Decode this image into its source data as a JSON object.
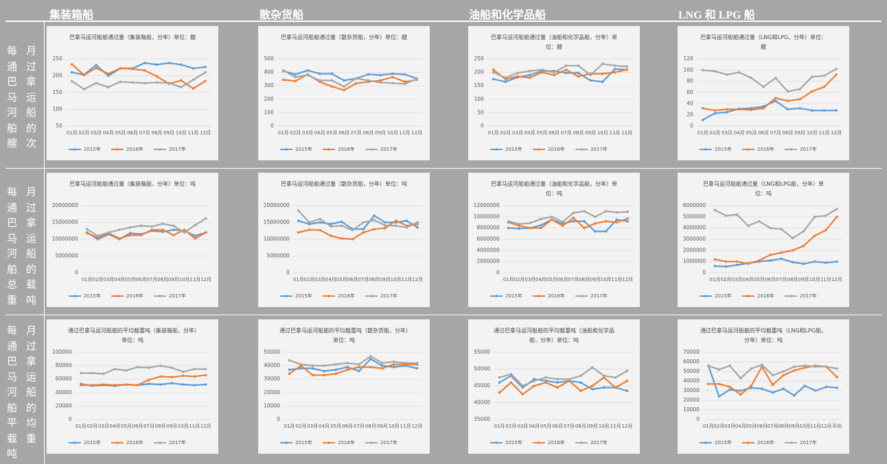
{
  "column_headers": [
    "集装箱船",
    "散杂货船",
    "油船和化学品船",
    "LNG 和 LPG 船"
  ],
  "row_labels": [
    "每月通过巴拿马运河船舶的艘次",
    "每月通过巴拿马运河船舶的总载重吨",
    "每月通过巴拿马运河船舶的平均载重吨"
  ],
  "chart_data": [
    {
      "type": "line",
      "title": "巴拿马运河船舶通过量（集装箱船，分年）单位：艘",
      "categories": [
        "01月",
        "02月",
        "03月",
        "04月",
        "05月",
        "06月",
        "07月",
        "08月",
        "09月",
        "10月",
        "11月",
        "12月"
      ],
      "ylim": [
        50,
        250
      ],
      "yticks": [
        50,
        100,
        150,
        200,
        250
      ],
      "grid": true,
      "series": [
        {
          "name": "2015年",
          "color": "#5b9bd5",
          "values": [
            210,
            203,
            232,
            200,
            222,
            222,
            238,
            233,
            238,
            233,
            222,
            226
          ]
        },
        {
          "name": "2016年",
          "color": "#ed7d31",
          "values": [
            234,
            202,
            223,
            206,
            222,
            220,
            216,
            198,
            176,
            186,
            162,
            184
          ]
        },
        {
          "name": "2017年",
          "color": "#a5a5a5",
          "values": [
            184,
            160,
            178,
            166,
            182,
            180,
            178,
            180,
            178,
            166,
            188,
            210
          ]
        }
      ]
    },
    {
      "type": "line",
      "title": "巴拿马运河船舶通过量（散杂货船，分年）单位：艘",
      "categories": [
        "01月",
        "02月",
        "03月",
        "04月",
        "05月",
        "06月",
        "07月",
        "08月",
        "09月",
        "10月",
        "11月",
        "12月"
      ],
      "ylim": [
        0,
        500
      ],
      "yticks": [
        0,
        100,
        200,
        300,
        400,
        500
      ],
      "grid": true,
      "series": [
        {
          "name": "2015年",
          "color": "#5b9bd5",
          "values": [
            410,
            385,
            415,
            390,
            390,
            340,
            355,
            385,
            380,
            390,
            385,
            355
          ]
        },
        {
          "name": "2016年",
          "color": "#ed7d31",
          "values": [
            345,
            335,
            385,
            330,
            295,
            268,
            318,
            330,
            340,
            365,
            330,
            345
          ]
        },
        {
          "name": "2017年",
          "color": "#a5a5a5",
          "values": [
            415,
            365,
            380,
            340,
            340,
            295,
            355,
            340,
            325,
            320,
            315,
            350
          ]
        }
      ]
    },
    {
      "type": "line",
      "title": "巴拿马运河船舶通过量（油船和化学品船，分年）单位：艘",
      "categories": [
        "01月",
        "02月",
        "03月",
        "04月",
        "05月",
        "06月",
        "07月",
        "08月",
        "09月",
        "10月",
        "11月",
        "12月"
      ],
      "ylim": [
        0,
        250
      ],
      "yticks": [
        0,
        50,
        100,
        150,
        200,
        250
      ],
      "grid": true,
      "series": [
        {
          "name": "2015年",
          "color": "#5b9bd5",
          "values": [
            175,
            165,
            182,
            190,
            205,
            205,
            198,
            198,
            170,
            165,
            212,
            210
          ]
        },
        {
          "name": "2016年",
          "color": "#ed7d31",
          "values": [
            210,
            175,
            185,
            180,
            200,
            190,
            210,
            185,
            195,
            195,
            200,
            210
          ]
        },
        {
          "name": "2017年",
          "color": "#a5a5a5",
          "values": [
            200,
            180,
            198,
            205,
            210,
            200,
            225,
            225,
            190,
            232,
            225,
            222
          ]
        }
      ]
    },
    {
      "type": "line",
      "title": "巴拿马运河船舶通过量（LNG和LPG，分年）单位：艘",
      "categories": [
        "01月",
        "02月",
        "03月",
        "04月",
        "05月",
        "06月",
        "07月",
        "08月",
        "09月",
        "10月",
        "11月",
        "12月"
      ],
      "ylim": [
        0,
        120
      ],
      "yticks": [
        0,
        20,
        40,
        60,
        80,
        100,
        120
      ],
      "grid": true,
      "series": [
        {
          "name": "2015年",
          "color": "#5b9bd5",
          "values": [
            11,
            23,
            25,
            31,
            32,
            35,
            45,
            30,
            32,
            28,
            28,
            28
          ]
        },
        {
          "name": "2016年",
          "color": "#ed7d31",
          "values": [
            32,
            28,
            30,
            30,
            29,
            32,
            50,
            45,
            48,
            62,
            70,
            92
          ]
        },
        {
          "name": "2017年",
          "color": "#a5a5a5",
          "values": [
            100,
            98,
            92,
            96,
            86,
            70,
            86,
            62,
            66,
            88,
            90,
            102
          ]
        }
      ]
    },
    {
      "type": "line",
      "title": "巴拿马运河船舶通过量（集装箱船，分年）单位：吨",
      "categories": [
        "01月",
        "02月",
        "03月",
        "04月",
        "05月",
        "06月",
        "07月",
        "08月",
        "09月",
        "10月",
        "11月",
        "12月"
      ],
      "ylim": [
        0,
        20000000
      ],
      "yticks": [
        0,
        5000000,
        10000000,
        15000000,
        20000000
      ],
      "grid": true,
      "series": [
        {
          "name": "2015年",
          "color": "#5b9bd5",
          "values": [
            12000000,
            10000000,
            11500000,
            10000000,
            11800000,
            11500000,
            12500000,
            12200000,
            12800000,
            12500000,
            11000000,
            12000000
          ]
        },
        {
          "name": "2016年",
          "color": "#ed7d31",
          "values": [
            11800000,
            10500000,
            11800000,
            10200000,
            11200000,
            11200000,
            12800000,
            12800000,
            11200000,
            12800000,
            10200000,
            12000000
          ]
        },
        {
          "name": "2017年",
          "color": "#a5a5a5",
          "values": [
            13000000,
            11000000,
            12000000,
            12800000,
            13500000,
            14000000,
            13800000,
            14600000,
            14000000,
            12000000,
            14200000,
            16200000
          ]
        }
      ]
    },
    {
      "type": "line",
      "title": "巴拿马运河船舶通过量（散杂货船，分年）单位：吨",
      "categories": [
        "01月",
        "02月",
        "03月",
        "04月",
        "05月",
        "06月",
        "07月",
        "08月",
        "09月",
        "10月",
        "11月",
        "12月"
      ],
      "ylim": [
        0,
        20000000
      ],
      "yticks": [
        0,
        5000000,
        10000000,
        15000000,
        20000000
      ],
      "grid": true,
      "series": [
        {
          "name": "2015年",
          "color": "#5b9bd5",
          "values": [
            15500000,
            14500000,
            15000000,
            14500000,
            15200000,
            13000000,
            13000000,
            17000000,
            15000000,
            15000000,
            15500000,
            13500000
          ]
        },
        {
          "name": "2016年",
          "color": "#ed7d31",
          "values": [
            12000000,
            12800000,
            12700000,
            11000000,
            10200000,
            10000000,
            12000000,
            13000000,
            13300000,
            15500000,
            14000000,
            14500000
          ]
        },
        {
          "name": "2017年",
          "color": "#a5a5a5",
          "values": [
            18500000,
            15000000,
            16000000,
            13800000,
            14000000,
            12700000,
            15000000,
            15700000,
            14100000,
            14000000,
            13500000,
            15000000
          ]
        }
      ]
    },
    {
      "type": "line",
      "title": "巴拿马运河船舶通过量（油船和化学品船，分年）单位：吨",
      "categories": [
        "01月",
        "02月",
        "03月",
        "04月",
        "05月",
        "06月",
        "07月",
        "08月",
        "09月",
        "10月",
        "11月",
        "12月"
      ],
      "ylim": [
        0,
        12000000
      ],
      "yticks": [
        0,
        2000000,
        4000000,
        6000000,
        8000000,
        10000000,
        12000000
      ],
      "grid": true,
      "series": [
        {
          "name": "2015年",
          "color": "#5b9bd5",
          "values": [
            8000000,
            7900000,
            8000000,
            8500000,
            9500000,
            8800000,
            9200000,
            9200000,
            7400000,
            7400000,
            9500000,
            9200000
          ]
        },
        {
          "name": "2016年",
          "color": "#ed7d31",
          "values": [
            9000000,
            8400000,
            8000000,
            8000000,
            9500000,
            8400000,
            9800000,
            8000000,
            8800000,
            9200000,
            9000000,
            9700000
          ]
        },
        {
          "name": "2017年",
          "color": "#a5a5a5",
          "values": [
            9200000,
            8700000,
            8900000,
            9600000,
            10000000,
            9100000,
            10700000,
            11000000,
            10000000,
            11000000,
            10800000,
            10900000
          ]
        }
      ]
    },
    {
      "type": "line",
      "title": "巴拿马运河船舶通过量（LNG和LPG船，分年）单位：吨",
      "categories": [
        "01月",
        "02月",
        "03月",
        "04月",
        "05月",
        "06月",
        "07月",
        "08月",
        "09月",
        "10月",
        "11月",
        "12月"
      ],
      "ylim": [
        0,
        6000000
      ],
      "yticks": [
        0,
        1000000,
        2000000,
        3000000,
        4000000,
        5000000,
        6000000
      ],
      "grid": true,
      "series": [
        {
          "name": "2015年",
          "color": "#5b9bd5",
          "values": [
            600000,
            550000,
            700000,
            850000,
            1000000,
            1100000,
            1250000,
            950000,
            800000,
            1000000,
            900000,
            1000000
          ]
        },
        {
          "name": "2016年",
          "color": "#ed7d31",
          "values": [
            1200000,
            1000000,
            1000000,
            800000,
            1100000,
            1600000,
            1800000,
            2000000,
            2400000,
            3300000,
            3800000,
            5000000
          ]
        },
        {
          "name": "2017年",
          "color": "#a5a5a5",
          "values": [
            5600000,
            5100000,
            5200000,
            4200000,
            4600000,
            4000000,
            3900000,
            3100000,
            3700000,
            5000000,
            5100000,
            5700000
          ]
        }
      ]
    },
    {
      "type": "line",
      "title": "通过巴拿马运河船舶的平均载重吨（集装箱船，分年）单位：吨",
      "categories": [
        "01月",
        "02月",
        "03月",
        "04月",
        "05月",
        "06月",
        "07月",
        "08月",
        "09月",
        "10月",
        "11月",
        "12月"
      ],
      "ylim": [
        0,
        100000
      ],
      "yticks": [
        0,
        20000,
        40000,
        60000,
        80000,
        100000
      ],
      "grid": true,
      "series": [
        {
          "name": "2015年",
          "color": "#5b9bd5",
          "values": [
            53000,
            50000,
            51000,
            50000,
            52000,
            51000,
            53000,
            52000,
            54000,
            52000,
            51000,
            52000
          ]
        },
        {
          "name": "2016年",
          "color": "#ed7d31",
          "values": [
            51000,
            51000,
            52000,
            51000,
            52000,
            51000,
            59000,
            64000,
            63000,
            65000,
            64000,
            66000
          ]
        },
        {
          "name": "2017年",
          "color": "#a5a5a5",
          "values": [
            69000,
            69000,
            68000,
            75000,
            73000,
            78000,
            77000,
            80000,
            77000,
            71000,
            75000,
            75000
          ]
        }
      ]
    },
    {
      "type": "line",
      "title": "通过巴拿马运河船舶的平均载重吨（散杂货船，分年）单位：吨",
      "categories": [
        "01月",
        "02月",
        "03月",
        "04月",
        "05月",
        "06月",
        "07月",
        "08月",
        "09月",
        "10月",
        "11月",
        "12月"
      ],
      "ylim": [
        0,
        50000
      ],
      "yticks": [
        0,
        10000,
        20000,
        30000,
        40000,
        50000
      ],
      "grid": true,
      "series": [
        {
          "name": "2015年",
          "color": "#5b9bd5",
          "values": [
            37000,
            38000,
            38000,
            36000,
            37000,
            39000,
            36000,
            45000,
            40000,
            39000,
            40000,
            38000
          ]
        },
        {
          "name": "2016年",
          "color": "#ed7d31",
          "values": [
            34000,
            40000,
            33000,
            33000,
            34000,
            37000,
            39000,
            39000,
            38000,
            41000,
            41000,
            41000
          ]
        },
        {
          "name": "2017年",
          "color": "#a5a5a5",
          "values": [
            44000,
            41000,
            40000,
            40000,
            41000,
            42000,
            41000,
            47000,
            42000,
            43000,
            42000,
            42000
          ]
        }
      ]
    },
    {
      "type": "line",
      "title": "通过巴拿马运河船舶的平均载重吨（油船和化学品船，分年）单位：吨",
      "categories": [
        "01月",
        "02月",
        "03月",
        "04月",
        "05月",
        "06月",
        "07月",
        "08月",
        "09月",
        "10月",
        "11月",
        "12月"
      ],
      "ylim": [
        35000,
        55000
      ],
      "yticks": [
        35000,
        40000,
        45000,
        50000,
        55000
      ],
      "grid": true,
      "series": [
        {
          "name": "2015年",
          "color": "#5b9bd5",
          "values": [
            46000,
            48000,
            44500,
            47000,
            46500,
            46000,
            46500,
            46000,
            44000,
            44500,
            44500,
            43500
          ]
        },
        {
          "name": "2016年",
          "color": "#ed7d31",
          "values": [
            43000,
            46000,
            42500,
            45000,
            46000,
            44500,
            46500,
            43500,
            45000,
            47500,
            44500,
            46500
          ]
        },
        {
          "name": "2017年",
          "color": "#a5a5a5",
          "values": [
            47500,
            48500,
            45000,
            46500,
            47500,
            47000,
            47000,
            48000,
            50500,
            48000,
            47500,
            49500
          ]
        }
      ]
    },
    {
      "type": "line",
      "title": "通过巴拿马运河船舶的平均载重吨（LNG和LPG船，分年）单位：吨",
      "categories": [
        "01月",
        "02月",
        "03月",
        "04月",
        "05月",
        "06月",
        "07月",
        "08月",
        "09月",
        "10月",
        "11月",
        "12月",
        "平均"
      ],
      "ylim": [
        0,
        70000
      ],
      "yticks": [
        0,
        10000,
        20000,
        30000,
        40000,
        50000,
        60000,
        70000
      ],
      "grid": true,
      "series": [
        {
          "name": "2015年",
          "color": "#5b9bd5",
          "values": [
            56000,
            24000,
            31000,
            30000,
            33000,
            32000,
            28000,
            32000,
            25000,
            35000,
            30000,
            34000,
            33000
          ]
        },
        {
          "name": "2016年",
          "color": "#ed7d31",
          "values": [
            37000,
            37000,
            34000,
            26000,
            35000,
            55000,
            36000,
            46000,
            51000,
            54000,
            56000,
            55000,
            44000
          ]
        },
        {
          "name": "2017年",
          "color": "#a5a5a5",
          "values": [
            56000,
            52000,
            56000,
            43000,
            53000,
            57000,
            46000,
            50000,
            55000,
            56000,
            55000,
            55000,
            53000
          ]
        }
      ]
    }
  ]
}
